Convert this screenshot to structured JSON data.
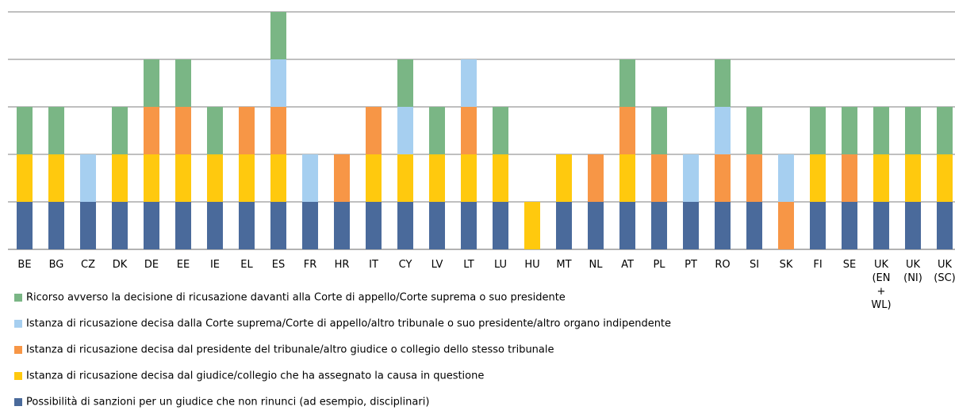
{
  "chart_data": {
    "type": "stacked_bar",
    "categories": [
      "BE",
      "BG",
      "CZ",
      "DK",
      "DE",
      "EE",
      "IE",
      "EL",
      "ES",
      "FR",
      "HR",
      "IT",
      "CY",
      "LV",
      "LT",
      "LU",
      "HU",
      "MT",
      "NL",
      "AT",
      "PL",
      "PT",
      "RO",
      "SI",
      "SK",
      "FI",
      "SE",
      "UK (EN + WL)",
      "UK (NI)",
      "UK (SC)"
    ],
    "series": [
      {
        "name": "Possibilità di sanzioni per un giudice che non rinunci (ad esempio, disciplinari)",
        "color": "#4a6a9b",
        "values": [
          1,
          1,
          1,
          1,
          1,
          1,
          1,
          1,
          1,
          1,
          1,
          1,
          1,
          1,
          1,
          1,
          0,
          1,
          1,
          1,
          1,
          1,
          1,
          1,
          0,
          1,
          1,
          1,
          1,
          1
        ]
      },
      {
        "name": "Istanza di ricusazione decisa dal giudice/collegio che ha assegnato la causa in questione",
        "color": "#ffc90e",
        "values": [
          1,
          1,
          0,
          1,
          1,
          1,
          1,
          1,
          1,
          0,
          0,
          1,
          1,
          1,
          1,
          1,
          1,
          1,
          0,
          1,
          0,
          0,
          0,
          0,
          0,
          1,
          0,
          1,
          1,
          1
        ]
      },
      {
        "name": "Istanza di ricusazione decisa dal presidente del tribunale/altro giudice o collegio dello stesso tribunale",
        "color": "#f79646",
        "values": [
          0,
          0,
          0,
          0,
          1,
          1,
          0,
          1,
          1,
          0,
          1,
          1,
          0,
          0,
          1,
          0,
          0,
          0,
          1,
          1,
          1,
          0,
          1,
          1,
          1,
          0,
          1,
          0,
          0,
          0
        ]
      },
      {
        "name": "Istanza di ricusazione decisa dalla Corte suprema/Corte di appello/altro tribunale o suo presidente/altro organo indipendente",
        "color": "#a6cff0",
        "values": [
          0,
          0,
          1,
          0,
          0,
          0,
          0,
          0,
          1,
          1,
          0,
          0,
          1,
          0,
          1,
          0,
          0,
          0,
          0,
          0,
          0,
          1,
          1,
          0,
          1,
          0,
          0,
          0,
          0,
          0
        ]
      },
      {
        "name": "Ricorso avverso la decisione di ricusazione davanti alla Corte di appello/Corte suprema o suo presidente",
        "color": "#7ab685",
        "values": [
          1,
          1,
          0,
          1,
          1,
          1,
          1,
          0,
          1,
          0,
          0,
          0,
          1,
          1,
          0,
          1,
          0,
          0,
          0,
          1,
          1,
          0,
          1,
          1,
          0,
          1,
          1,
          1,
          1,
          1
        ]
      }
    ],
    "ylim": [
      0,
      5
    ],
    "yticks": [
      0,
      1,
      2,
      3,
      4,
      5
    ],
    "grid": true
  }
}
